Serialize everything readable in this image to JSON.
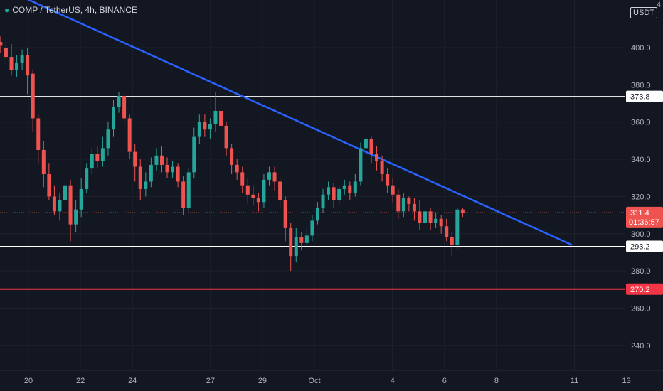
{
  "symbol_title": "COMP / TetherUS, 4h, BINANCE",
  "quote_currency": "USDT",
  "corner_label": "4",
  "colors": {
    "background": "#131722",
    "up": "#26a69a",
    "down": "#ef5350",
    "trendline": "#2962ff",
    "support": "#ffffff",
    "strong_support": "#f23645",
    "axis_text": "#b2b5be"
  },
  "chart_data": {
    "type": "candlestick",
    "interval": "4h",
    "y_ticks": [
      240.0,
      260.0,
      280.0,
      300.0,
      320.0,
      340.0,
      360.0,
      380.0,
      400.0
    ],
    "x_ticks": [
      "20",
      "22",
      "24",
      "27",
      "29",
      "Oct",
      "4",
      "6",
      "8",
      "11",
      "13"
    ],
    "price_labels": [
      {
        "value": "373.8",
        "kind": "horizontal-line"
      },
      {
        "value": "311.4",
        "kind": "last-price",
        "countdown": "01:36:57"
      },
      {
        "value": "293.2",
        "kind": "horizontal-line"
      },
      {
        "value": "270.2",
        "kind": "horizontal-line-red"
      }
    ],
    "levels": [
      373.8,
      293.2,
      270.2
    ],
    "last_price": 311.4,
    "trendline": {
      "start": {
        "x_day": 18.85,
        "price": 433
      },
      "end": {
        "x_day": 40.9,
        "price": 294
      }
    },
    "candles": [
      [
        403,
        401,
        397,
        406
      ],
      [
        400,
        395,
        390,
        405
      ],
      [
        395,
        388,
        385,
        402
      ],
      [
        388,
        392,
        384,
        396
      ],
      [
        392,
        396,
        388,
        399
      ],
      [
        396,
        385,
        375,
        400
      ],
      [
        386,
        362,
        355,
        388
      ],
      [
        362,
        345,
        338,
        364
      ],
      [
        345,
        332,
        325,
        350
      ],
      [
        332,
        320,
        318,
        338
      ],
      [
        320,
        312,
        310,
        326
      ],
      [
        312,
        318,
        307,
        322
      ],
      [
        318,
        326,
        315,
        328
      ],
      [
        326,
        305,
        296,
        329
      ],
      [
        305,
        313,
        301,
        318
      ],
      [
        313,
        324,
        309,
        330
      ],
      [
        324,
        335,
        322,
        338
      ],
      [
        335,
        343,
        332,
        346
      ],
      [
        343,
        339,
        335,
        347
      ],
      [
        339,
        346,
        336,
        352
      ],
      [
        346,
        356,
        342,
        360
      ],
      [
        356,
        368,
        352,
        372
      ],
      [
        368,
        374,
        365,
        376
      ],
      [
        374,
        362,
        358,
        376
      ],
      [
        362,
        344,
        340,
        364
      ],
      [
        344,
        336,
        328,
        348
      ],
      [
        336,
        324,
        318,
        340
      ],
      [
        324,
        328,
        320,
        333
      ],
      [
        328,
        337,
        325,
        341
      ],
      [
        337,
        342,
        334,
        346
      ],
      [
        342,
        337,
        333,
        347
      ],
      [
        337,
        333,
        330,
        341
      ],
      [
        333,
        336,
        330,
        339
      ],
      [
        336,
        328,
        325,
        338
      ],
      [
        328,
        314,
        310,
        331
      ],
      [
        314,
        333,
        312,
        335
      ],
      [
        333,
        352,
        330,
        357
      ],
      [
        352,
        360,
        348,
        364
      ],
      [
        360,
        356,
        352,
        364
      ],
      [
        356,
        359,
        351,
        362
      ],
      [
        359,
        366,
        355,
        376
      ],
      [
        366,
        358,
        352,
        370
      ],
      [
        358,
        346,
        342,
        360
      ],
      [
        346,
        337,
        332,
        348
      ],
      [
        337,
        333,
        329,
        340
      ],
      [
        333,
        326,
        322,
        336
      ],
      [
        326,
        321,
        316,
        330
      ],
      [
        321,
        319,
        315,
        326
      ],
      [
        319,
        317,
        312,
        322
      ],
      [
        317,
        329,
        314,
        332
      ],
      [
        329,
        333,
        326,
        336
      ],
      [
        333,
        328,
        323,
        336
      ],
      [
        328,
        318,
        314,
        330
      ],
      [
        318,
        303,
        296,
        320
      ],
      [
        303,
        288,
        280,
        306
      ],
      [
        288,
        298,
        285,
        303
      ],
      [
        298,
        295,
        291,
        301
      ],
      [
        295,
        299,
        293,
        303
      ],
      [
        299,
        307,
        296,
        310
      ],
      [
        307,
        314,
        305,
        317
      ],
      [
        314,
        321,
        311,
        324
      ],
      [
        321,
        325,
        318,
        328
      ],
      [
        325,
        318,
        314,
        327
      ],
      [
        318,
        324,
        316,
        326
      ],
      [
        324,
        326,
        321,
        329
      ],
      [
        326,
        322,
        318,
        328
      ],
      [
        322,
        328,
        320,
        332
      ],
      [
        328,
        346,
        326,
        349
      ],
      [
        346,
        351,
        344,
        353
      ],
      [
        351,
        343,
        338,
        352
      ],
      [
        343,
        339,
        334,
        347
      ],
      [
        339,
        332,
        328,
        342
      ],
      [
        332,
        326,
        322,
        335
      ],
      [
        326,
        321,
        317,
        330
      ],
      [
        321,
        312,
        308,
        324
      ],
      [
        312,
        319,
        309,
        322
      ],
      [
        319,
        316,
        312,
        320
      ],
      [
        316,
        312,
        307,
        319
      ],
      [
        312,
        306,
        302,
        318
      ],
      [
        306,
        312,
        303,
        315
      ],
      [
        312,
        306,
        302,
        314
      ],
      [
        306,
        308,
        303,
        311
      ],
      [
        308,
        304,
        300,
        310
      ],
      [
        304,
        298,
        296,
        308
      ],
      [
        298,
        294,
        288,
        301
      ],
      [
        294,
        313,
        292,
        314
      ],
      [
        313,
        311,
        309,
        314
      ]
    ]
  }
}
